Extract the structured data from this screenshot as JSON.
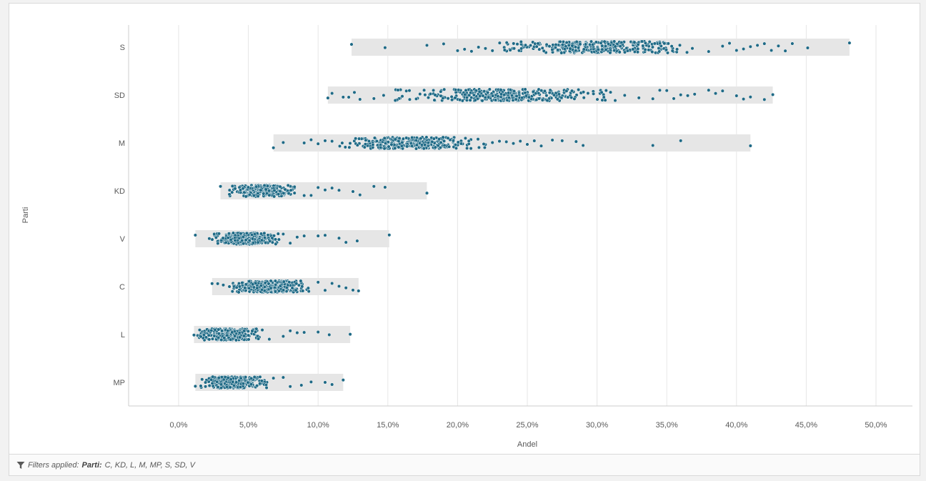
{
  "chart_data": {
    "type": "scatter",
    "subtype": "strip-plot",
    "xlabel": "Andel",
    "ylabel": "Parti",
    "xlim": [
      -0.03,
      0.52
    ],
    "x_ticks": [
      {
        "value": 0.0,
        "label": "0,0%"
      },
      {
        "value": 0.05,
        "label": "5,0%"
      },
      {
        "value": 0.1,
        "label": "10,0%"
      },
      {
        "value": 0.15,
        "label": "15,0%"
      },
      {
        "value": 0.2,
        "label": "20,0%"
      },
      {
        "value": 0.25,
        "label": "25,0%"
      },
      {
        "value": 0.3,
        "label": "30,0%"
      },
      {
        "value": 0.35,
        "label": "35,0%"
      },
      {
        "value": 0.4,
        "label": "40,0%"
      },
      {
        "value": 0.45,
        "label": "45,0%"
      },
      {
        "value": 0.5,
        "label": "50,0%"
      }
    ],
    "grid": "vertical",
    "point_color": "#1f6a86",
    "range_color": "#e6e6e6",
    "categories": [
      {
        "label": "S",
        "min": 0.124,
        "max": 0.481,
        "core": [
          0.23,
          0.37
        ],
        "sparse": [
          0.124,
          0.148,
          0.178,
          0.19,
          0.2,
          0.205,
          0.21,
          0.215,
          0.22,
          0.225,
          0.38,
          0.39,
          0.395,
          0.4,
          0.405,
          0.41,
          0.415,
          0.42,
          0.425,
          0.43,
          0.435,
          0.44,
          0.451,
          0.481
        ]
      },
      {
        "label": "SD",
        "min": 0.107,
        "max": 0.426,
        "core": [
          0.155,
          0.32
        ],
        "sparse": [
          0.107,
          0.11,
          0.118,
          0.122,
          0.126,
          0.13,
          0.14,
          0.147,
          0.33,
          0.34,
          0.345,
          0.35,
          0.355,
          0.36,
          0.365,
          0.37,
          0.38,
          0.385,
          0.39,
          0.4,
          0.405,
          0.41,
          0.42,
          0.426
        ]
      },
      {
        "label": "M",
        "min": 0.068,
        "max": 0.41,
        "core": [
          0.115,
          0.22
        ],
        "sparse": [
          0.068,
          0.075,
          0.09,
          0.095,
          0.1,
          0.105,
          0.11,
          0.225,
          0.23,
          0.235,
          0.24,
          0.245,
          0.25,
          0.255,
          0.26,
          0.268,
          0.275,
          0.285,
          0.29,
          0.34,
          0.36,
          0.41
        ]
      },
      {
        "label": "KD",
        "min": 0.03,
        "max": 0.178,
        "core": [
          0.035,
          0.085
        ],
        "sparse": [
          0.03,
          0.09,
          0.095,
          0.1,
          0.105,
          0.11,
          0.115,
          0.125,
          0.13,
          0.14,
          0.148,
          0.178
        ]
      },
      {
        "label": "V",
        "min": 0.012,
        "max": 0.151,
        "core": [
          0.024,
          0.072
        ],
        "sparse": [
          0.012,
          0.022,
          0.075,
          0.08,
          0.085,
          0.09,
          0.1,
          0.105,
          0.115,
          0.12,
          0.128,
          0.151
        ]
      },
      {
        "label": "C",
        "min": 0.024,
        "max": 0.129,
        "core": [
          0.035,
          0.095
        ],
        "sparse": [
          0.024,
          0.028,
          0.032,
          0.1,
          0.105,
          0.11,
          0.115,
          0.12,
          0.125,
          0.129
        ]
      },
      {
        "label": "L",
        "min": 0.011,
        "max": 0.123,
        "core": [
          0.013,
          0.058
        ],
        "sparse": [
          0.011,
          0.06,
          0.065,
          0.075,
          0.08,
          0.085,
          0.09,
          0.1,
          0.108,
          0.123
        ]
      },
      {
        "label": "MP",
        "min": 0.012,
        "max": 0.118,
        "core": [
          0.014,
          0.064
        ],
        "sparse": [
          0.012,
          0.068,
          0.075,
          0.08,
          0.088,
          0.095,
          0.105,
          0.11,
          0.118
        ]
      }
    ]
  },
  "footer": {
    "prefix": "Filters applied:",
    "field": "Parti:",
    "values": "C, KD, L, M, MP, S, SD, V"
  }
}
